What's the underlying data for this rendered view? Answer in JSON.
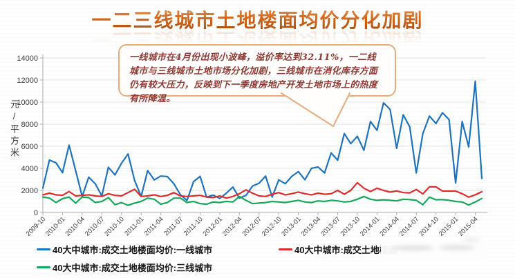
{
  "title": "一二三线城市土地楼面均价分化加剧",
  "callout": {
    "text": "一线城市在4月份出现小波峰，溢价率达到32.11%，一二线城市与三线城市土地市场分化加剧，三线城市在消化库存方面仍有较大压力，反映到下一季度房地产开发土地市场上的热度有所降温。"
  },
  "legend": {
    "row1_left": "40大中城市:成交土地楼面均价:一线城市",
    "row1_right_visible": "40大中城市:成交土地楼面",
    "row1_right_obscured_by_blur": true,
    "row2_left": "40大中城市:成交土地楼面均价:三线城市"
  },
  "chart_data": {
    "type": "line",
    "title": "一二三线城市土地楼面均价分化加剧",
    "xlabel": "",
    "ylabel": "元/平方米",
    "ylim": [
      0,
      14000
    ],
    "ytick_step": 2000,
    "y_ticks": [
      0,
      2000,
      4000,
      6000,
      8000,
      10000,
      12000,
      14000
    ],
    "grid": true,
    "legend_position": "bottom-left",
    "x_label_step": 3,
    "x": [
      "2009-10",
      "2009-11",
      "2009-12",
      "2010-01",
      "2010-02",
      "2010-03",
      "2010-04",
      "2010-05",
      "2010-06",
      "2010-07",
      "2010-08",
      "2010-09",
      "2010-10",
      "2010-11",
      "2010-12",
      "2011-01",
      "2011-02",
      "2011-03",
      "2011-04",
      "2011-05",
      "2011-06",
      "2011-07",
      "2011-08",
      "2011-09",
      "2011-10",
      "2011-11",
      "2011-12",
      "2012-01",
      "2012-02",
      "2012-03",
      "2012-04",
      "2012-05",
      "2012-06",
      "2012-07",
      "2012-08",
      "2012-09",
      "2012-10",
      "2012-11",
      "2012-12",
      "2013-01",
      "2013-02",
      "2013-03",
      "2013-04",
      "2013-05",
      "2013-06",
      "2013-07",
      "2013-08",
      "2013-09",
      "2013-10",
      "2013-11",
      "2013-12",
      "2014-01",
      "2014-02",
      "2014-03",
      "2014-04",
      "2014-05",
      "2014-06",
      "2014-07",
      "2014-08",
      "2014-09",
      "2014-10",
      "2014-11",
      "2014-12",
      "2015-01",
      "2015-02",
      "2015-03",
      "2015-04",
      "2015-05"
    ],
    "series": [
      {
        "name": "40大中城市:成交土地楼面均价:一线城市",
        "color": "#1f72be",
        "values": [
          2200,
          4750,
          4500,
          3600,
          6100,
          3800,
          1450,
          3200,
          2600,
          1500,
          4100,
          3400,
          4450,
          5300,
          2900,
          1450,
          3800,
          2950,
          3300,
          3250,
          2600,
          1600,
          1090,
          2800,
          3270,
          1390,
          1575,
          1270,
          1750,
          2300,
          1300,
          1550,
          2400,
          2650,
          3300,
          1400,
          2950,
          2605,
          3275,
          3700,
          2970,
          4000,
          4120,
          3580,
          5390,
          4730,
          7150,
          6240,
          6900,
          5635,
          8240,
          7450,
          9940,
          9340,
          5820,
          8850,
          7760,
          3580,
          7150,
          8730,
          8060,
          9030,
          8420,
          2670,
          8240,
          5940,
          11880,
          3090
        ]
      },
      {
        "name": "40大中城市:成交土地楼面",
        "color": "#e02b2b",
        "values": [
          1600,
          1750,
          1600,
          1550,
          1900,
          1500,
          1550,
          1600,
          1500,
          1450,
          1700,
          1550,
          1500,
          1800,
          2100,
          1450,
          1500,
          1600,
          1450,
          1550,
          1800,
          1500,
          1450,
          1500,
          1550,
          1400,
          1350,
          1500,
          1300,
          1450,
          1700,
          2050,
          1750,
          1500,
          1450,
          1650,
          1800,
          1600,
          1700,
          1850,
          1700,
          1600,
          1750,
          1650,
          1700,
          2000,
          1650,
          2000,
          2700,
          2200,
          1900,
          2200,
          2000,
          1850,
          1950,
          1800,
          1775,
          2080,
          1680,
          2320,
          2320,
          1940,
          1940,
          1940,
          1700,
          1390,
          1600,
          1880
        ]
      },
      {
        "name": "40大中城市:成交土地楼面均价:三线城市",
        "color": "#16a85a",
        "values": [
          1400,
          1300,
          900,
          1250,
          1400,
          850,
          1400,
          1350,
          900,
          1000,
          1350,
          700,
          900,
          650,
          850,
          1000,
          1300,
          1200,
          750,
          900,
          1300,
          1300,
          900,
          1000,
          800,
          750,
          950,
          900,
          1000,
          950,
          1450,
          1100,
          800,
          850,
          900,
          1000,
          950,
          900,
          1000,
          1100,
          950,
          900,
          1050,
          1000,
          1100,
          1050,
          950,
          1000,
          1200,
          1450,
          1200,
          1100,
          1150,
          1100,
          1050,
          1200,
          1170,
          1100,
          700,
          1390,
          1150,
          1170,
          1100,
          1000,
          950,
          666,
          950,
          1270
        ]
      }
    ]
  }
}
